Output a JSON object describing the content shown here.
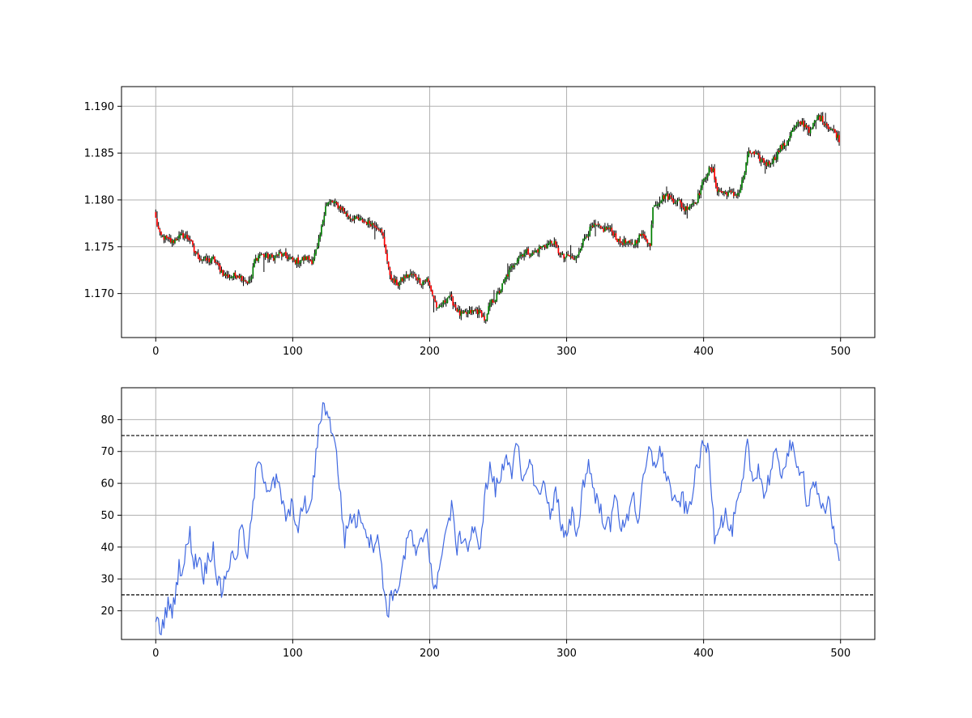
{
  "colors": {
    "up": "#008000",
    "down": "#ff0000",
    "wick": "#000000",
    "indicator_line": "#4169e1",
    "threshold_line": "#000000",
    "grid": "#b0b0b0"
  },
  "chart_data": [
    {
      "type": "candlestick",
      "title": "",
      "xlabel": "",
      "ylabel": "",
      "grid": true,
      "xlim": [
        -25,
        525
      ],
      "ylim": [
        1.1653,
        1.1921
      ],
      "x_ticks": [
        0,
        100,
        200,
        300,
        400,
        500
      ],
      "x_tick_labels": [
        "0",
        "100",
        "200",
        "300",
        "400",
        "500"
      ],
      "y_ticks": [
        1.17,
        1.175,
        1.18,
        1.185,
        1.19
      ],
      "y_tick_labels": [
        "1.170",
        "1.175",
        "1.180",
        "1.185",
        "1.190"
      ],
      "close_anchors": [
        [
          0,
          1.178
        ],
        [
          3,
          1.1762
        ],
        [
          8,
          1.1758
        ],
        [
          12,
          1.1755
        ],
        [
          16,
          1.176
        ],
        [
          20,
          1.1762
        ],
        [
          25,
          1.1758
        ],
        [
          28,
          1.1745
        ],
        [
          32,
          1.1738
        ],
        [
          38,
          1.1735
        ],
        [
          42,
          1.1737
        ],
        [
          46,
          1.1728
        ],
        [
          50,
          1.172
        ],
        [
          55,
          1.1718
        ],
        [
          60,
          1.172
        ],
        [
          65,
          1.1715
        ],
        [
          68,
          1.1712
        ],
        [
          70,
          1.1718
        ],
        [
          72,
          1.1735
        ],
        [
          76,
          1.1742
        ],
        [
          80,
          1.174
        ],
        [
          85,
          1.1738
        ],
        [
          90,
          1.1742
        ],
        [
          95,
          1.174
        ],
        [
          100,
          1.1735
        ],
        [
          105,
          1.1735
        ],
        [
          110,
          1.1738
        ],
        [
          114,
          1.1735
        ],
        [
          118,
          1.1748
        ],
        [
          121,
          1.177
        ],
        [
          124,
          1.1795
        ],
        [
          128,
          1.1798
        ],
        [
          132,
          1.1795
        ],
        [
          136,
          1.179
        ],
        [
          140,
          1.1783
        ],
        [
          145,
          1.178
        ],
        [
          150,
          1.1778
        ],
        [
          155,
          1.1776
        ],
        [
          160,
          1.1774
        ],
        [
          163,
          1.177
        ],
        [
          166,
          1.176
        ],
        [
          168,
          1.1745
        ],
        [
          170,
          1.1725
        ],
        [
          173,
          1.1713
        ],
        [
          177,
          1.171
        ],
        [
          182,
          1.1718
        ],
        [
          186,
          1.172
        ],
        [
          190,
          1.1718
        ],
        [
          194,
          1.1712
        ],
        [
          198,
          1.1715
        ],
        [
          200,
          1.1708
        ],
        [
          203,
          1.1695
        ],
        [
          206,
          1.1682
        ],
        [
          210,
          1.169
        ],
        [
          214,
          1.1698
        ],
        [
          218,
          1.1688
        ],
        [
          222,
          1.1678
        ],
        [
          226,
          1.1678
        ],
        [
          230,
          1.168
        ],
        [
          234,
          1.1682
        ],
        [
          238,
          1.1678
        ],
        [
          241,
          1.167
        ],
        [
          244,
          1.169
        ],
        [
          248,
          1.1695
        ],
        [
          252,
          1.1705
        ],
        [
          256,
          1.1718
        ],
        [
          260,
          1.1728
        ],
        [
          265,
          1.174
        ],
        [
          270,
          1.1745
        ],
        [
          275,
          1.1742
        ],
        [
          280,
          1.1748
        ],
        [
          285,
          1.1752
        ],
        [
          290,
          1.1755
        ],
        [
          294,
          1.1745
        ],
        [
          298,
          1.1738
        ],
        [
          302,
          1.174
        ],
        [
          306,
          1.1735
        ],
        [
          310,
          1.175
        ],
        [
          314,
          1.1762
        ],
        [
          318,
          1.177
        ],
        [
          322,
          1.1772
        ],
        [
          326,
          1.1768
        ],
        [
          330,
          1.177
        ],
        [
          334,
          1.1765
        ],
        [
          338,
          1.1755
        ],
        [
          342,
          1.1755
        ],
        [
          346,
          1.1752
        ],
        [
          350,
          1.1755
        ],
        [
          354,
          1.1762
        ],
        [
          358,
          1.176
        ],
        [
          361,
          1.175
        ],
        [
          363,
          1.1795
        ],
        [
          367,
          1.1798
        ],
        [
          372,
          1.1805
        ],
        [
          378,
          1.18
        ],
        [
          382,
          1.1798
        ],
        [
          386,
          1.179
        ],
        [
          390,
          1.1795
        ],
        [
          395,
          1.18
        ],
        [
          398,
          1.1812
        ],
        [
          401,
          1.1825
        ],
        [
          404,
          1.1832
        ],
        [
          407,
          1.183
        ],
        [
          410,
          1.181
        ],
        [
          414,
          1.1808
        ],
        [
          418,
          1.1808
        ],
        [
          422,
          1.1805
        ],
        [
          426,
          1.1808
        ],
        [
          430,
          1.183
        ],
        [
          433,
          1.1852
        ],
        [
          437,
          1.1848
        ],
        [
          442,
          1.1843
        ],
        [
          447,
          1.1838
        ],
        [
          452,
          1.1845
        ],
        [
          456,
          1.1855
        ],
        [
          460,
          1.186
        ],
        [
          464,
          1.1872
        ],
        [
          468,
          1.188
        ],
        [
          472,
          1.1882
        ],
        [
          476,
          1.1878
        ],
        [
          478,
          1.1872
        ],
        [
          480,
          1.188
        ],
        [
          484,
          1.189
        ],
        [
          487,
          1.1885
        ],
        [
          490,
          1.188
        ],
        [
          494,
          1.1875
        ],
        [
          497,
          1.187
        ],
        [
          499,
          1.1865
        ]
      ]
    },
    {
      "type": "line",
      "title": "",
      "xlabel": "",
      "ylabel": "",
      "grid": true,
      "xlim": [
        -25,
        525
      ],
      "ylim": [
        11,
        90
      ],
      "x_ticks": [
        0,
        100,
        200,
        300,
        400,
        500
      ],
      "x_tick_labels": [
        "0",
        "100",
        "200",
        "300",
        "400",
        "500"
      ],
      "y_ticks": [
        20,
        30,
        40,
        50,
        60,
        70,
        80
      ],
      "y_tick_labels": [
        "20",
        "30",
        "40",
        "50",
        "60",
        "70",
        "80"
      ],
      "threshold_lines": [
        75,
        25
      ],
      "value_anchors": [
        [
          0,
          18
        ],
        [
          2,
          15
        ],
        [
          4,
          14
        ],
        [
          7,
          19
        ],
        [
          10,
          23
        ],
        [
          12,
          18
        ],
        [
          14,
          25
        ],
        [
          17,
          34
        ],
        [
          20,
          33
        ],
        [
          23,
          41
        ],
        [
          25,
          44
        ],
        [
          28,
          35
        ],
        [
          32,
          37
        ],
        [
          35,
          31
        ],
        [
          38,
          36
        ],
        [
          42,
          40
        ],
        [
          45,
          30
        ],
        [
          48,
          26
        ],
        [
          52,
          33
        ],
        [
          56,
          37
        ],
        [
          60,
          39
        ],
        [
          63,
          49
        ],
        [
          66,
          35
        ],
        [
          70,
          48
        ],
        [
          73,
          62
        ],
        [
          76,
          69
        ],
        [
          80,
          60
        ],
        [
          84,
          58
        ],
        [
          88,
          61
        ],
        [
          92,
          55
        ],
        [
          96,
          48
        ],
        [
          100,
          54
        ],
        [
          104,
          44
        ],
        [
          108,
          55
        ],
        [
          112,
          50
        ],
        [
          116,
          64
        ],
        [
          120,
          80
        ],
        [
          123,
          86
        ],
        [
          126,
          80
        ],
        [
          130,
          76
        ],
        [
          134,
          60
        ],
        [
          138,
          42
        ],
        [
          142,
          50
        ],
        [
          146,
          48
        ],
        [
          150,
          50
        ],
        [
          154,
          45
        ],
        [
          158,
          40
        ],
        [
          162,
          45
        ],
        [
          166,
          28
        ],
        [
          170,
          19
        ],
        [
          172,
          27
        ],
        [
          175,
          24
        ],
        [
          178,
          30
        ],
        [
          182,
          38
        ],
        [
          186,
          46
        ],
        [
          190,
          36
        ],
        [
          194,
          42
        ],
        [
          198,
          46
        ],
        [
          202,
          30
        ],
        [
          205,
          25
        ],
        [
          208,
          38
        ],
        [
          212,
          45
        ],
        [
          216,
          52
        ],
        [
          220,
          40
        ],
        [
          224,
          44
        ],
        [
          228,
          40
        ],
        [
          232,
          46
        ],
        [
          236,
          38
        ],
        [
          240,
          55
        ],
        [
          244,
          65
        ],
        [
          248,
          58
        ],
        [
          252,
          62
        ],
        [
          256,
          70
        ],
        [
          260,
          64
        ],
        [
          264,
          72
        ],
        [
          268,
          58
        ],
        [
          272,
          68
        ],
        [
          276,
          62
        ],
        [
          280,
          55
        ],
        [
          284,
          62
        ],
        [
          288,
          48
        ],
        [
          292,
          60
        ],
        [
          296,
          46
        ],
        [
          300,
          42
        ],
        [
          304,
          50
        ],
        [
          308,
          44
        ],
        [
          312,
          60
        ],
        [
          316,
          66
        ],
        [
          320,
          58
        ],
        [
          324,
          52
        ],
        [
          328,
          48
        ],
        [
          332,
          46
        ],
        [
          336,
          58
        ],
        [
          340,
          45
        ],
        [
          344,
          48
        ],
        [
          348,
          58
        ],
        [
          352,
          48
        ],
        [
          356,
          60
        ],
        [
          360,
          70
        ],
        [
          364,
          66
        ],
        [
          368,
          70
        ],
        [
          372,
          64
        ],
        [
          376,
          58
        ],
        [
          380,
          52
        ],
        [
          384,
          56
        ],
        [
          388,
          50
        ],
        [
          392,
          58
        ],
        [
          396,
          66
        ],
        [
          400,
          72
        ],
        [
          404,
          70
        ],
        [
          408,
          44
        ],
        [
          412,
          48
        ],
        [
          416,
          50
        ],
        [
          420,
          44
        ],
        [
          424,
          52
        ],
        [
          428,
          58
        ],
        [
          432,
          72
        ],
        [
          436,
          60
        ],
        [
          440,
          66
        ],
        [
          444,
          56
        ],
        [
          448,
          62
        ],
        [
          452,
          70
        ],
        [
          456,
          62
        ],
        [
          460,
          68
        ],
        [
          464,
          72
        ],
        [
          468,
          64
        ],
        [
          472,
          66
        ],
        [
          476,
          52
        ],
        [
          480,
          62
        ],
        [
          484,
          54
        ],
        [
          488,
          50
        ],
        [
          492,
          56
        ],
        [
          495,
          44
        ],
        [
          497,
          40
        ],
        [
          499,
          38
        ]
      ]
    }
  ]
}
